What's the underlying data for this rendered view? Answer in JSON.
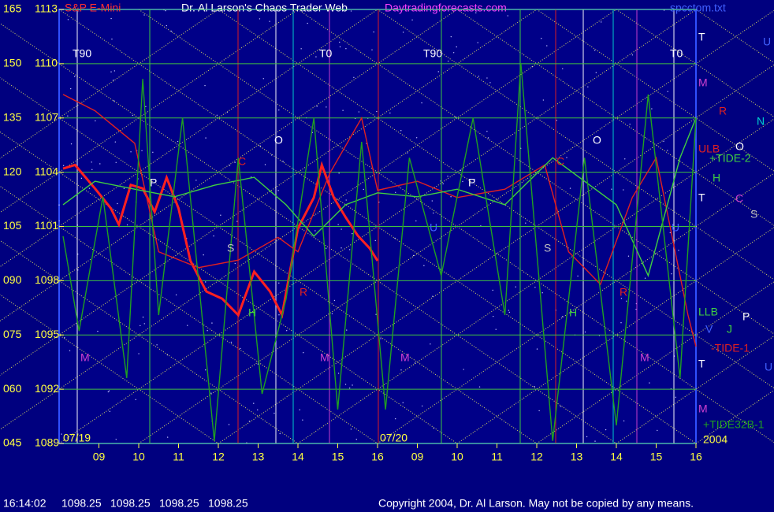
{
  "chart_data": {
    "type": "line",
    "title": "Dr. Al Larson's Chaos Trader Web",
    "site": "Daytradingforecasts.com",
    "file": "spcctom.txt",
    "xlim": [
      0,
      16
    ],
    "xticks": [
      {
        "value": 1,
        "label": "09"
      },
      {
        "value": 2,
        "label": "10"
      },
      {
        "value": 3,
        "label": "11"
      },
      {
        "value": 4,
        "label": "12"
      },
      {
        "value": 5,
        "label": "13"
      },
      {
        "value": 6,
        "label": "14"
      },
      {
        "value": 7,
        "label": "15"
      },
      {
        "value": 8,
        "label": "16"
      },
      {
        "value": 9,
        "label": "09"
      },
      {
        "value": 10,
        "label": "10"
      },
      {
        "value": 11,
        "label": "11"
      },
      {
        "value": 12,
        "label": "12"
      },
      {
        "value": 13,
        "label": "13"
      },
      {
        "value": 14,
        "label": "14"
      },
      {
        "value": 15,
        "label": "15"
      },
      {
        "value": 16,
        "label": "16"
      }
    ],
    "dates": [
      "07/19",
      "07/20",
      "2004"
    ],
    "ylim": [
      1089,
      1113
    ],
    "yticks": [
      1089,
      1092,
      1095,
      1098,
      1101,
      1104,
      1107,
      1110,
      1113
    ],
    "y2lim": [
      45,
      165
    ],
    "y2ticks": [
      {
        "value": 45,
        "label": "045"
      },
      {
        "value": 60,
        "label": "060"
      },
      {
        "value": 75,
        "label": "075"
      },
      {
        "value": 90,
        "label": "090"
      },
      105,
      120,
      135,
      150,
      165
    ],
    "grid": true,
    "series": [
      {
        "name": "S&P E-Mini",
        "color": "#ff2020",
        "x": [
          0.1,
          0.4,
          0.9,
          1.3,
          1.5,
          1.8,
          2.1,
          2.4,
          2.7,
          3.0,
          3.3,
          3.7,
          4.1,
          4.5,
          4.9,
          5.3,
          5.6,
          6.0,
          6.4,
          6.6,
          6.9,
          7.2,
          7.5,
          7.8,
          8.0
        ],
        "values": [
          1104.2,
          1104.4,
          1103.1,
          1102.0,
          1101.1,
          1103.3,
          1103.1,
          1101.8,
          1103.7,
          1102.0,
          1099.1,
          1097.4,
          1097.0,
          1096.1,
          1098.5,
          1097.4,
          1096.1,
          1100.9,
          1102.6,
          1104.4,
          1102.6,
          1101.5,
          1100.5,
          1099.8,
          1099.1
        ]
      },
      {
        "name": "-TIDE-1",
        "color": "#e02020",
        "axis": "y2",
        "x": [
          0.1,
          0.9,
          1.9,
          2.5,
          3.5,
          4.5,
          5.5,
          6.0,
          6.8,
          7.6,
          8.0,
          9.0,
          10.0,
          11.2,
          12.2,
          12.8,
          13.6,
          14.4,
          15.0,
          15.8,
          16.0
        ],
        "values": [
          141.5,
          137,
          128,
          98,
          93.6,
          95.7,
          102,
          98,
          119.7,
          135,
          115,
          117.5,
          113,
          115.3,
          122,
          98,
          89,
          113,
          124,
          80.5,
          71.8
        ]
      },
      {
        "name": "+TIDE-2",
        "color": "#40d040",
        "axis": "y2",
        "x": [
          0.1,
          0.9,
          1.9,
          2.9,
          3.9,
          4.9,
          5.7,
          6.4,
          7.2,
          8.0,
          9.0,
          10.0,
          11.2,
          12.4,
          13.2,
          14.0,
          14.8,
          15.6,
          16.0
        ],
        "values": [
          111,
          117.5,
          115.3,
          113.2,
          116.4,
          118.6,
          111,
          102.3,
          111,
          114.3,
          113.2,
          115.3,
          111,
          124,
          117.5,
          111,
          91.4,
          124,
          135
        ]
      },
      {
        "name": "+TIDE32B-1",
        "color": "#20a020",
        "axis": "y2",
        "x": [
          0.1,
          0.5,
          1.1,
          1.7,
          2.1,
          2.5,
          3.1,
          3.9,
          4.5,
          5.1,
          5.7,
          6.4,
          7.0,
          7.6,
          8.2,
          8.8,
          9.6,
          10.4,
          11.2,
          11.6,
          12.4,
          13.2,
          14.0,
          14.8,
          15.6,
          16.0
        ],
        "values": [
          102.3,
          76.1,
          113.2,
          63.1,
          145.8,
          80.5,
          135,
          45.7,
          124,
          58.7,
          84.9,
          135,
          54.4,
          128.4,
          54.4,
          124,
          91.4,
          135,
          80.5,
          150.2,
          45.7,
          124,
          50,
          141.5,
          63.1,
          135
        ]
      }
    ],
    "markers": [
      {
        "text": "T90",
        "color": "#ffffff"
      },
      {
        "text": "T0",
        "color": "#ffffff"
      },
      {
        "text": "T90",
        "color": "#ffffff"
      },
      {
        "text": "T0",
        "color": "#ffffff"
      },
      {
        "text": "O",
        "color": "#ffffff"
      },
      {
        "text": "O",
        "color": "#ffffff"
      },
      {
        "text": "P",
        "color": "#ffffff"
      },
      {
        "text": "P",
        "color": "#ffffff"
      },
      {
        "text": "C",
        "color": "#e02020"
      },
      {
        "text": "C",
        "color": "#e02020"
      },
      {
        "text": "S",
        "color": "#c0c0c0"
      },
      {
        "text": "S",
        "color": "#c0c0c0"
      },
      {
        "text": "H",
        "color": "#40d040"
      },
      {
        "text": "H",
        "color": "#40d040"
      },
      {
        "text": "R",
        "color": "#e02020"
      },
      {
        "text": "R",
        "color": "#e02020"
      },
      {
        "text": "M",
        "color": "#d040d0"
      },
      {
        "text": "M",
        "color": "#d040d0"
      },
      {
        "text": "M",
        "color": "#d040d0"
      },
      {
        "text": "M",
        "color": "#d040d0"
      },
      {
        "text": "U",
        "color": "#4060ff"
      },
      {
        "text": "U",
        "color": "#4060ff"
      }
    ],
    "right_labels": [
      {
        "text": "T",
        "color": "#ffffff"
      },
      {
        "text": "U",
        "color": "#4060ff"
      },
      {
        "text": "M",
        "color": "#d040d0"
      },
      {
        "text": "R",
        "color": "#e02020"
      },
      {
        "text": "N",
        "color": "#00d0d0"
      },
      {
        "text": "ULB",
        "color": "#e02020"
      },
      {
        "text": "O",
        "color": "#ffffff"
      },
      {
        "text": "H",
        "color": "#40d040"
      },
      {
        "text": "T",
        "color": "#ffffff"
      },
      {
        "text": "C",
        "color": "#d040d0"
      },
      {
        "text": "S",
        "color": "#c0c0c0"
      },
      {
        "text": "LLB",
        "color": "#40d040"
      },
      {
        "text": "V",
        "color": "#4060ff"
      },
      {
        "text": "J",
        "color": "#40d040"
      },
      {
        "text": "P",
        "color": "#ffffff"
      },
      {
        "text": "T",
        "color": "#ffffff"
      },
      {
        "text": "U",
        "color": "#4060ff"
      },
      {
        "text": "M",
        "color": "#d040d0"
      }
    ],
    "status": {
      "time": "16:14:02",
      "quotes": [
        "1098.25",
        "1098.25",
        "1098.25",
        "1098.25"
      ]
    },
    "copyright": "Copyright 2004, Dr. Al Larson. May not be copied by any means."
  }
}
